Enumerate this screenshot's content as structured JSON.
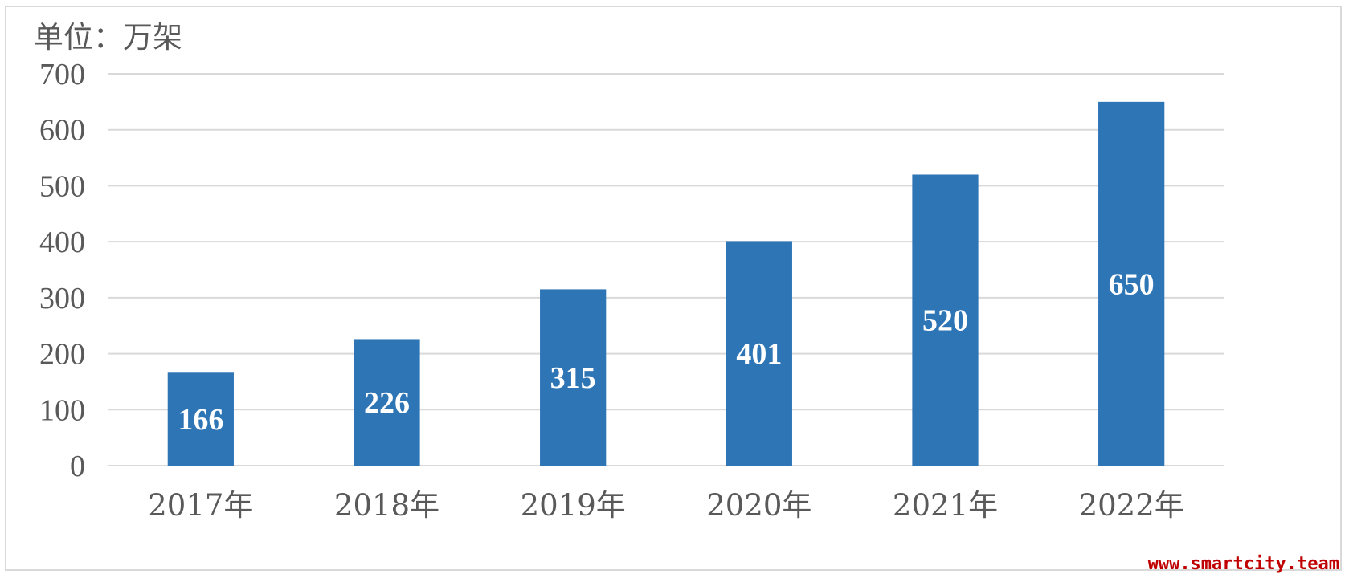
{
  "chart_data": {
    "type": "bar",
    "unit_label": "单位：万架",
    "categories": [
      "2017年",
      "2018年",
      "2019年",
      "2020年",
      "2021年",
      "2022年"
    ],
    "values": [
      166,
      226,
      315,
      401,
      520,
      650
    ],
    "data_labels": [
      "166",
      "226",
      "315",
      "401",
      "520",
      "650"
    ],
    "y_ticks": [
      0,
      100,
      200,
      300,
      400,
      500,
      600,
      700
    ],
    "ylim": [
      0,
      700
    ],
    "grid": true,
    "bar_color": "#2e75b6",
    "grid_color": "#d9d9d9",
    "data_label_color": "#ffffff"
  },
  "watermark": "www.smartcity.team"
}
